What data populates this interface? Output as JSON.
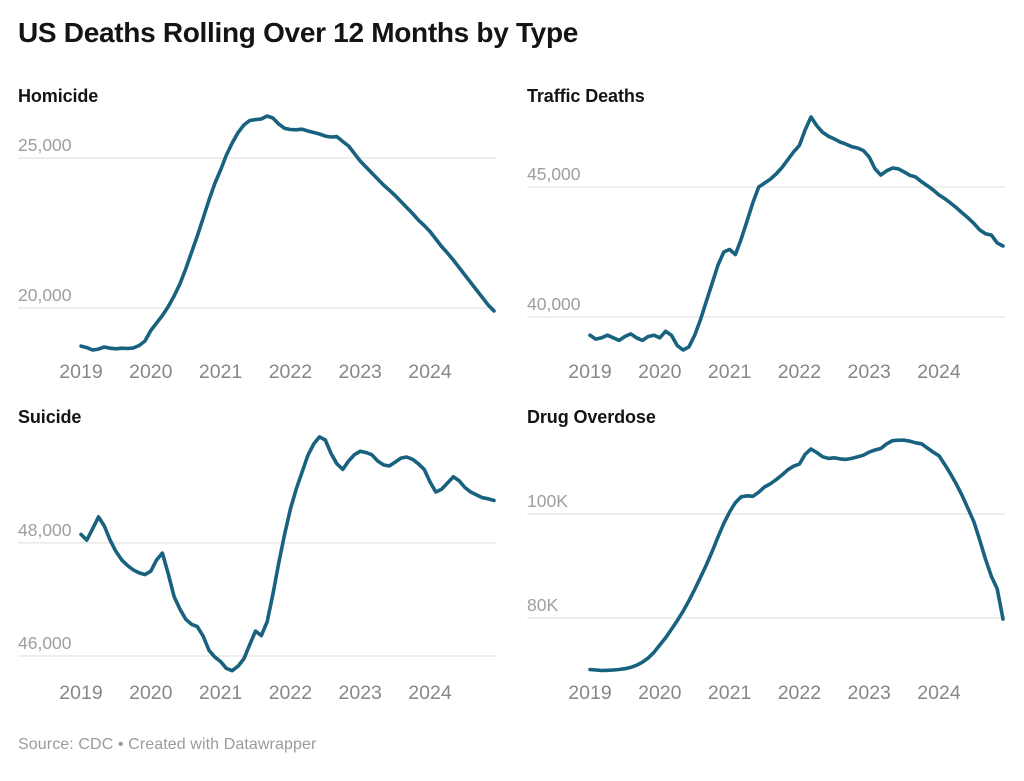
{
  "title": "US Deaths Rolling Over 12 Months by Type",
  "source": "Source: CDC • Created with Datawrapper",
  "colors": {
    "line": "#18627F",
    "grid": "#dcdcdc",
    "y_label": "#9e9e9e",
    "x_label": "#878787",
    "title": "#141414"
  },
  "chart_data": [
    {
      "type": "line",
      "title": "Homicide",
      "frequency": "monthly",
      "x_start": "2019-01",
      "x_end": "2024-12",
      "x_ticks": [
        "2019",
        "2020",
        "2021",
        "2022",
        "2023",
        "2024"
      ],
      "y_domain": [
        18367,
        26600
      ],
      "y_grid": [
        {
          "value": 25000,
          "label": "25,000"
        },
        {
          "value": 20000,
          "label": "20,000"
        }
      ],
      "values": [
        18730,
        18680,
        18600,
        18630,
        18700,
        18660,
        18640,
        18660,
        18650,
        18670,
        18750,
        18900,
        19250,
        19500,
        19750,
        20050,
        20400,
        20800,
        21300,
        21850,
        22400,
        23000,
        23600,
        24150,
        24600,
        25100,
        25500,
        25850,
        26100,
        26250,
        26280,
        26300,
        26400,
        26330,
        26130,
        25990,
        25950,
        25940,
        25960,
        25900,
        25850,
        25800,
        25730,
        25700,
        25710,
        25550,
        25400,
        25150,
        24900,
        24700,
        24500,
        24300,
        24100,
        23930,
        23750,
        23550,
        23350,
        23150,
        22930,
        22750,
        22550,
        22300,
        22050,
        21830,
        21600,
        21350,
        21100,
        20850,
        20600,
        20350,
        20100,
        19900
      ]
    },
    {
      "type": "line",
      "title": "Traffic Deaths",
      "frequency": "monthly",
      "x_start": "2019-01",
      "x_end": "2024-12",
      "x_ticks": [
        "2019",
        "2020",
        "2021",
        "2022",
        "2023",
        "2024"
      ],
      "y_domain": [
        38460,
        47960
      ],
      "y_grid": [
        {
          "value": 45000,
          "label": "45,000"
        },
        {
          "value": 40000,
          "label": "40,000"
        }
      ],
      "values": [
        39300,
        39150,
        39200,
        39300,
        39200,
        39100,
        39250,
        39350,
        39200,
        39100,
        39250,
        39300,
        39200,
        39450,
        39300,
        38900,
        38730,
        38850,
        39300,
        39900,
        40600,
        41300,
        42000,
        42500,
        42600,
        42400,
        43000,
        43700,
        44400,
        45000,
        45150,
        45300,
        45500,
        45750,
        46050,
        46350,
        46600,
        47200,
        47690,
        47350,
        47100,
        46950,
        46850,
        46730,
        46650,
        46550,
        46500,
        46400,
        46150,
        45700,
        45460,
        45620,
        45730,
        45700,
        45580,
        45450,
        45385,
        45200,
        45050,
        44885,
        44690,
        44550,
        44380,
        44200,
        44000,
        43810,
        43600,
        43350,
        43200,
        43150,
        42850,
        42730
      ]
    },
    {
      "type": "line",
      "title": "Suicide",
      "frequency": "monthly",
      "x_start": "2019-01",
      "x_end": "2024-12",
      "x_ticks": [
        "2019",
        "2020",
        "2021",
        "2022",
        "2023",
        "2024"
      ],
      "y_domain": [
        45610,
        49980
      ],
      "y_grid": [
        {
          "value": 48000,
          "label": "48,000"
        },
        {
          "value": 46000,
          "label": "46,000"
        }
      ],
      "values": [
        48150,
        48050,
        48250,
        48460,
        48300,
        48050,
        47850,
        47700,
        47600,
        47520,
        47470,
        47440,
        47500,
        47700,
        47820,
        47450,
        47050,
        46830,
        46650,
        46560,
        46520,
        46350,
        46100,
        45980,
        45900,
        45780,
        45740,
        45820,
        45950,
        46200,
        46440,
        46360,
        46600,
        47100,
        47650,
        48150,
        48600,
        48950,
        49250,
        49550,
        49750,
        49876,
        49820,
        49580,
        49400,
        49300,
        49450,
        49560,
        49620,
        49600,
        49560,
        49450,
        49380,
        49360,
        49430,
        49500,
        49520,
        49480,
        49400,
        49300,
        49080,
        48900,
        48950,
        49060,
        49170,
        49100,
        48980,
        48900,
        48850,
        48800,
        48780,
        48750
      ]
    },
    {
      "type": "line",
      "title": "Drug Overdose",
      "frequency": "monthly",
      "x_start": "2019-01",
      "x_end": "2024-12",
      "x_ticks": [
        "2019",
        "2020",
        "2021",
        "2022",
        "2023",
        "2024"
      ],
      "y_domain": [
        68460,
        115960
      ],
      "y_grid": [
        {
          "value": 100000,
          "label": "100K"
        },
        {
          "value": 80000,
          "label": "80K"
        }
      ],
      "values": [
        70100,
        70000,
        69900,
        69950,
        70000,
        70100,
        70250,
        70500,
        70900,
        71500,
        72300,
        73400,
        74800,
        76200,
        77800,
        79500,
        81300,
        83300,
        85500,
        87800,
        90200,
        92800,
        95600,
        98200,
        100400,
        102200,
        103300,
        103500,
        103400,
        104200,
        105200,
        105800,
        106600,
        107500,
        108500,
        109200,
        109600,
        111500,
        112500,
        111800,
        111000,
        110700,
        110800,
        110600,
        110500,
        110700,
        111000,
        111300,
        111900,
        112300,
        112600,
        113500,
        114100,
        114200,
        114200,
        114000,
        113700,
        113500,
        112700,
        111900,
        111200,
        109500,
        107700,
        105700,
        103500,
        101000,
        98500,
        95000,
        91300,
        88000,
        85600,
        79800
      ]
    }
  ]
}
